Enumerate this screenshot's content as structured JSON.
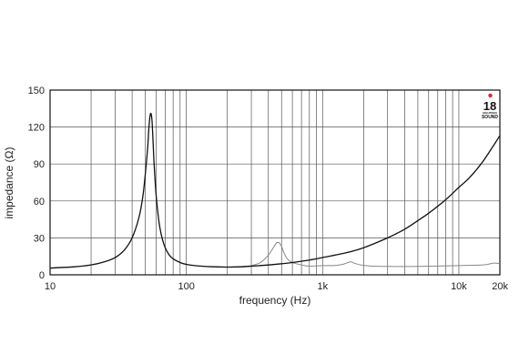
{
  "chart_data": {
    "type": "line",
    "title": "",
    "xlabel": "frequency (Hz)",
    "ylabel": "impedance (Ω)",
    "x_scale": "log",
    "xlim": [
      10,
      20000
    ],
    "ylim": [
      0,
      150
    ],
    "grid": true,
    "x_ticks": [
      {
        "value": 10,
        "label": "10"
      },
      {
        "value": 100,
        "label": "100"
      },
      {
        "value": 1000,
        "label": "1k"
      },
      {
        "value": 10000,
        "label": "10k"
      },
      {
        "value": 20000,
        "label": "20k"
      }
    ],
    "y_ticks": [
      {
        "value": 0,
        "label": "0"
      },
      {
        "value": 30,
        "label": "30"
      },
      {
        "value": 60,
        "label": "60"
      },
      {
        "value": 90,
        "label": "90"
      },
      {
        "value": 120,
        "label": "120"
      },
      {
        "value": 150,
        "label": "150"
      }
    ],
    "series": [
      {
        "color": "#111111",
        "x": [
          10,
          15,
          20,
          25,
          30,
          35,
          40,
          45,
          48,
          50,
          52,
          53,
          54,
          55,
          56,
          57,
          58,
          60,
          63,
          66,
          70,
          75,
          80,
          90,
          100,
          120,
          150,
          200,
          250,
          300,
          400,
          500,
          600,
          800,
          1000,
          1500,
          2000,
          3000,
          4000,
          5000,
          6000,
          8000,
          10000,
          12000,
          15000,
          20000
        ],
        "values": [
          5.5,
          6.5,
          8,
          10.5,
          14,
          20,
          30,
          47,
          64,
          82,
          103,
          118,
          128,
          131,
          125,
          108,
          90,
          65,
          43,
          31,
          22,
          16,
          13,
          10,
          8.5,
          7.3,
          6.6,
          6.3,
          6.5,
          7,
          8,
          9,
          10,
          12,
          14,
          18,
          22,
          30,
          37,
          44,
          50,
          61,
          71,
          79,
          92,
          113
        ]
      },
      {
        "color": "#888888",
        "x": [
          250,
          300,
          350,
          400,
          440,
          460,
          480,
          500,
          520,
          550,
          600,
          700,
          800,
          1000,
          1200,
          1400,
          1600,
          1700,
          1900,
          2200,
          3000,
          5000,
          10000,
          15000,
          18000,
          20000
        ],
        "values": [
          6.5,
          7.5,
          10,
          16,
          23,
          26,
          26,
          23,
          18,
          13,
          10,
          8,
          7,
          7.5,
          7.5,
          8.5,
          10.5,
          9.5,
          8,
          7.2,
          6.8,
          6.8,
          7.5,
          8,
          9.5,
          9
        ]
      }
    ]
  },
  "logo": {
    "number": "18",
    "line1": "EIGHTEEN",
    "line2": "SOUND",
    "accent": "#d7262b"
  }
}
